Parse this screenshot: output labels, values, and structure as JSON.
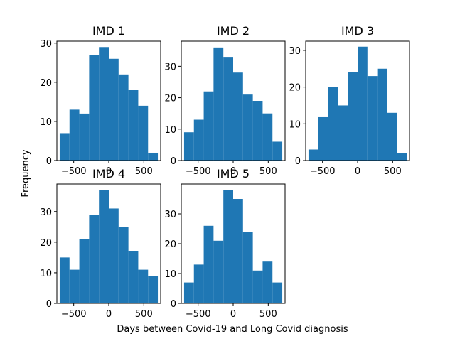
{
  "figure": {
    "xlabel": "Days between Covid-19 and Long Covid diagnosis",
    "ylabel": "Frequency",
    "bar_color": "#1f77b4"
  },
  "chart_data": [
    {
      "type": "bar",
      "title": "IMD 1",
      "bin_edges": [
        -700,
        -560,
        -420,
        -280,
        -140,
        0,
        140,
        280,
        420,
        560,
        700
      ],
      "values": [
        7,
        13,
        12,
        27,
        29,
        26,
        22,
        18,
        14,
        2
      ],
      "xlim": [
        -740,
        740
      ],
      "ylim": [
        0,
        30.5
      ],
      "xticks": [
        -500,
        0,
        500
      ],
      "xtick_labels": [
        "−500",
        "0",
        "500"
      ],
      "yticks": [
        0,
        10,
        20,
        30
      ],
      "ytick_labels": [
        "0",
        "10",
        "20",
        "30"
      ]
    },
    {
      "type": "bar",
      "title": "IMD 2",
      "bin_edges": [
        -700,
        -560,
        -420,
        -280,
        -140,
        0,
        140,
        280,
        420,
        560,
        700
      ],
      "values": [
        9,
        13,
        22,
        36,
        33,
        28,
        21,
        19,
        15,
        6
      ],
      "xlim": [
        -740,
        740
      ],
      "ylim": [
        0,
        38
      ],
      "xticks": [
        -500,
        0,
        500
      ],
      "xtick_labels": [
        "−500",
        "0",
        "500"
      ],
      "yticks": [
        0,
        10,
        20,
        30
      ],
      "ytick_labels": [
        "0",
        "10",
        "20",
        "30"
      ]
    },
    {
      "type": "bar",
      "title": "IMD 3",
      "bin_edges": [
        -700,
        -560,
        -420,
        -280,
        -140,
        0,
        140,
        280,
        420,
        560,
        700
      ],
      "values": [
        3,
        12,
        20,
        15,
        24,
        31,
        23,
        25,
        13,
        2
      ],
      "xlim": [
        -740,
        740
      ],
      "ylim": [
        0,
        32.5
      ],
      "xticks": [
        -500,
        0,
        500
      ],
      "xtick_labels": [
        "−500",
        "0",
        "500"
      ],
      "yticks": [
        0,
        10,
        20,
        30
      ],
      "ytick_labels": [
        "0",
        "10",
        "20",
        "30"
      ]
    },
    {
      "type": "bar",
      "title": "IMD 4",
      "bin_edges": [
        -700,
        -560,
        -420,
        -280,
        -140,
        0,
        140,
        280,
        420,
        560,
        700
      ],
      "values": [
        15,
        11,
        21,
        29,
        37,
        31,
        25,
        17,
        11,
        9
      ],
      "xlim": [
        -740,
        740
      ],
      "ylim": [
        0,
        39
      ],
      "xticks": [
        -500,
        0,
        500
      ],
      "xtick_labels": [
        "−500",
        "0",
        "500"
      ],
      "yticks": [
        0,
        10,
        20,
        30
      ],
      "ytick_labels": [
        "0",
        "10",
        "20",
        "30"
      ]
    },
    {
      "type": "bar",
      "title": "IMD 5",
      "bin_edges": [
        -700,
        -560,
        -420,
        -280,
        -140,
        0,
        140,
        280,
        420,
        560,
        700
      ],
      "values": [
        7,
        13,
        26,
        21,
        38,
        35,
        24,
        11,
        14,
        7
      ],
      "xlim": [
        -740,
        740
      ],
      "ylim": [
        0,
        40
      ],
      "xticks": [
        -500,
        0,
        500
      ],
      "xtick_labels": [
        "−500",
        "0",
        "500"
      ],
      "yticks": [
        0,
        10,
        20,
        30
      ],
      "ytick_labels": [
        "0",
        "10",
        "20",
        "30"
      ]
    }
  ]
}
